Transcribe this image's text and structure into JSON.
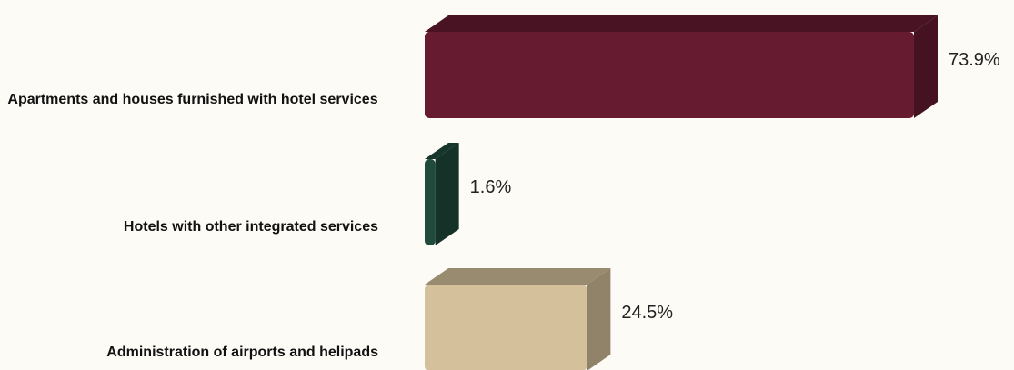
{
  "chart_data": {
    "type": "bar",
    "orientation": "horizontal",
    "categories": [
      "Apartments and houses furnished with hotel services",
      "Hotels with other integrated services",
      "Administration of airports and helipads"
    ],
    "values": [
      73.9,
      1.6,
      24.5
    ],
    "value_labels": [
      "73.9%",
      "1.6%",
      "24.5%"
    ],
    "colors": [
      "#661b30",
      "#1f4a3c",
      "#d4c19c"
    ]
  }
}
